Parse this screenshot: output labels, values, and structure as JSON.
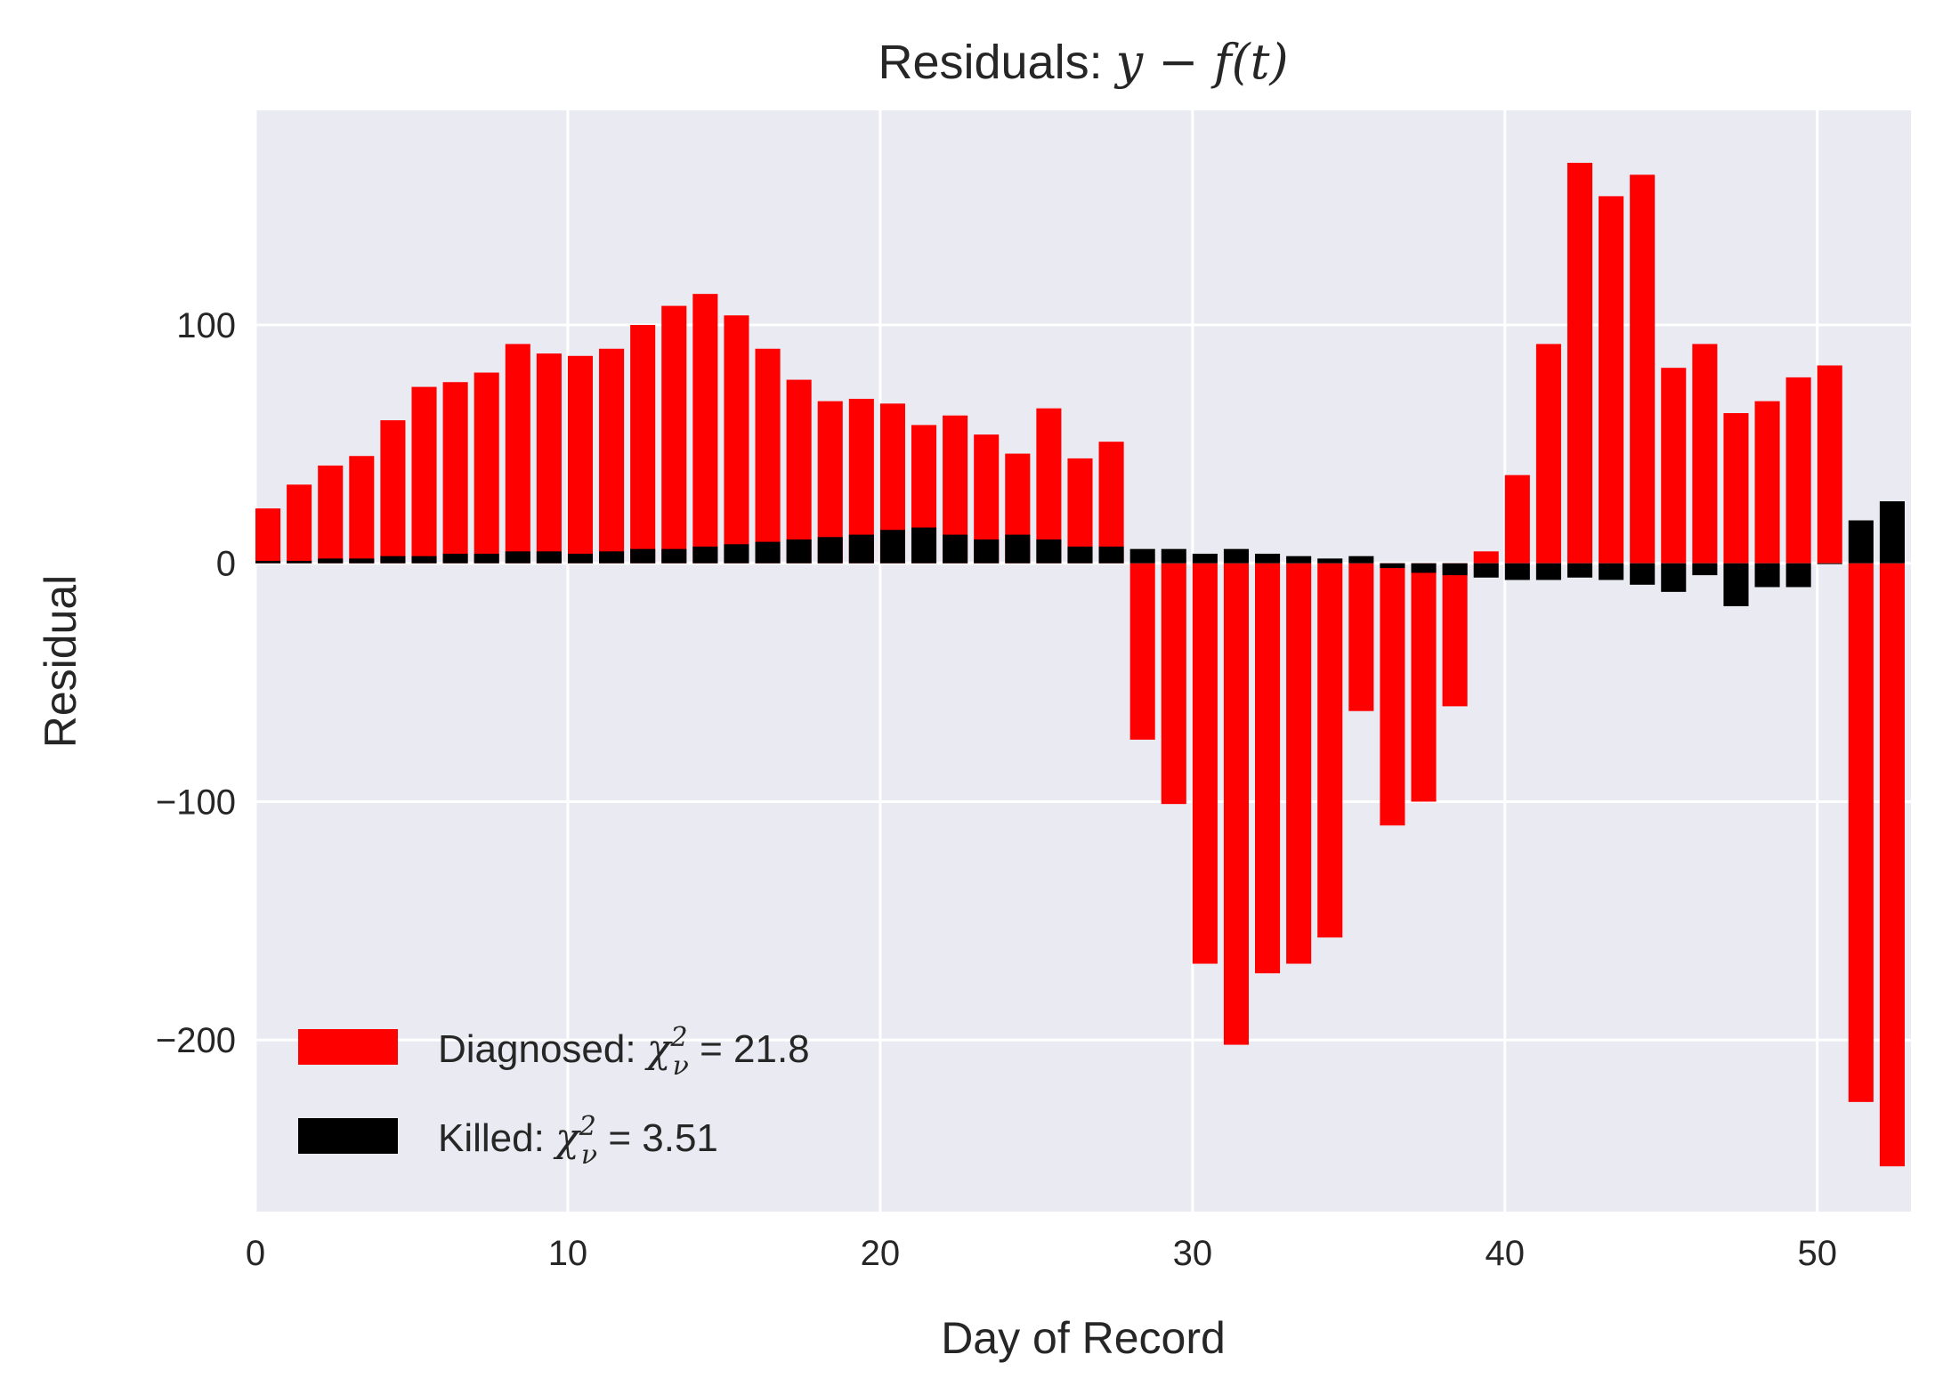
{
  "chart_data": {
    "type": "bar",
    "title": "Residuals: y − f(t)",
    "xlabel": "Day of Record",
    "ylabel": "Residual",
    "xlim": [
      0,
      53
    ],
    "ylim": [
      -272,
      190
    ],
    "xticks": [
      0,
      10,
      20,
      30,
      40,
      50
    ],
    "xtick_labels": [
      "0",
      "10",
      "20",
      "30",
      "40",
      "50"
    ],
    "yticks": [
      100,
      0,
      -100,
      -200
    ],
    "ytick_labels": [
      "100",
      "0",
      "−100",
      "−200"
    ],
    "grid": true,
    "legend_position": "lower-left",
    "x": [
      0,
      1,
      2,
      3,
      4,
      5,
      6,
      7,
      8,
      9,
      10,
      11,
      12,
      13,
      14,
      15,
      16,
      17,
      18,
      19,
      20,
      21,
      22,
      23,
      24,
      25,
      26,
      27,
      28,
      29,
      30,
      31,
      32,
      33,
      34,
      35,
      36,
      37,
      38,
      39,
      40,
      41,
      42,
      43,
      44,
      45,
      46,
      47,
      48,
      49,
      50,
      51,
      52
    ],
    "series": [
      {
        "name": "Diagnosed: χ²ν = 21.8",
        "legend_prefix": "Diagnosed: ",
        "legend_value": "21.8",
        "color": "#ff0000",
        "values": [
          23,
          33,
          41,
          45,
          60,
          74,
          76,
          80,
          92,
          88,
          87,
          90,
          100,
          108,
          113,
          104,
          90,
          77,
          68,
          69,
          67,
          58,
          62,
          54,
          46,
          65,
          44,
          51,
          -74,
          -101,
          -168,
          -202,
          -172,
          -168,
          -157,
          -62,
          -110,
          -100,
          -60,
          5,
          37,
          92,
          168,
          154,
          163,
          82,
          92,
          63,
          68,
          78,
          83,
          -226,
          -253
        ]
      },
      {
        "name": "Killed: χ²ν = 3.51",
        "legend_prefix": "Killed: ",
        "legend_value": "3.51",
        "color": "#000000",
        "values": [
          1,
          1,
          2,
          2,
          3,
          3,
          4,
          4,
          5,
          5,
          4,
          5,
          6,
          6,
          7,
          8,
          9,
          10,
          11,
          12,
          14,
          15,
          12,
          10,
          12,
          10,
          7,
          7,
          6,
          6,
          4,
          6,
          4,
          3,
          2,
          3,
          -2,
          -4,
          -5,
          -6,
          -7,
          -7,
          -6,
          -7,
          -9,
          -12,
          -5,
          -18,
          -10,
          -10,
          0,
          18,
          26
        ]
      }
    ],
    "colors": {
      "background": "#eaeaf2",
      "grid": "#ffffff",
      "text": "#262626"
    }
  }
}
